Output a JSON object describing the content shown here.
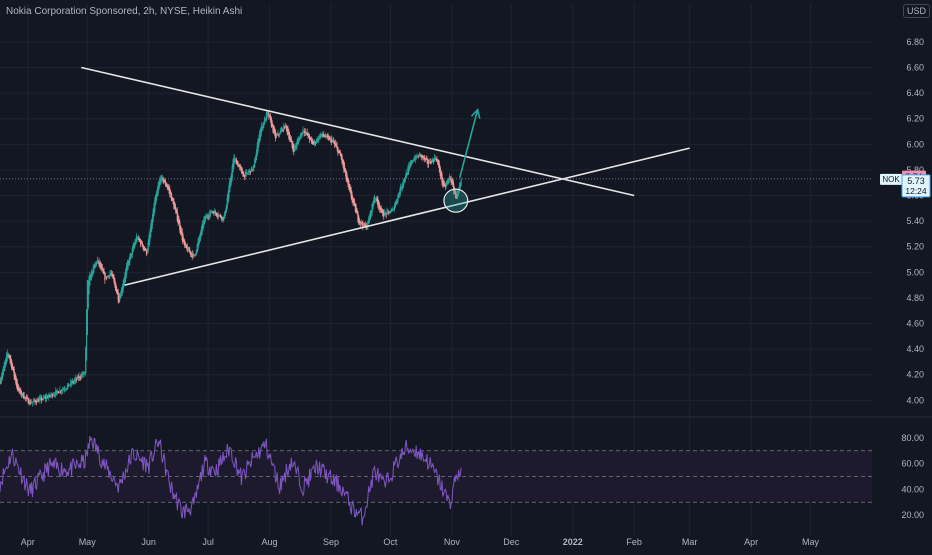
{
  "header": {
    "title": "Nokia Corporation Sponsored, 2h, NYSE, Heikin Ashi",
    "currency": "USD"
  },
  "colors": {
    "background": "#131722",
    "grid": "#1f2330",
    "up": "#26a69a",
    "down": "#ef9a9a",
    "trendline": "#e6e6e6",
    "arrow": "#26a69a",
    "rsi": "#7e57c2",
    "rsi_band": "#1e1a2e",
    "price_label": "#e1f5fe",
    "prev_label": "#f48fb1",
    "axis_text": "#b2b5be"
  },
  "chart_data": [
    {
      "type": "candlestick",
      "y_ticks": [
        "6.80",
        "6.60",
        "6.40",
        "6.20",
        "6.00",
        "5.80",
        "5.60",
        "5.40",
        "5.20",
        "5.00",
        "4.80",
        "4.60",
        "4.40",
        "4.20",
        "4.00"
      ],
      "ylim": [
        3.94,
        6.94
      ],
      "x_ticks": [
        "Apr",
        "May",
        "Jun",
        "Jul",
        "Aug",
        "Sep",
        "Oct",
        "Nov",
        "Dec",
        "2022",
        "Feb",
        "Mar",
        "Apr",
        "May"
      ],
      "x_tick_dates": [
        "2021-04-01",
        "2021-05-01",
        "2021-06-01",
        "2021-07-01",
        "2021-08-01",
        "2021-09-01",
        "2021-10-01",
        "2021-11-01",
        "2021-12-01",
        "2022-01-01",
        "2022-02-01",
        "2022-03-01",
        "2022-04-01",
        "2022-05-01"
      ],
      "xlim": [
        "2021-03-18",
        "2022-06-01"
      ],
      "series": [
        {
          "anchors": [
            [
              "2021-03-18",
              4.15
            ],
            [
              "2021-03-22",
              4.38
            ],
            [
              "2021-03-27",
              4.08
            ],
            [
              "2021-04-02",
              3.98
            ],
            [
              "2021-04-10",
              4.02
            ],
            [
              "2021-04-20",
              4.1
            ],
            [
              "2021-04-30",
              4.22
            ],
            [
              "2021-05-01",
              4.92
            ],
            [
              "2021-05-06",
              5.1
            ],
            [
              "2021-05-10",
              4.95
            ],
            [
              "2021-05-13",
              5.0
            ],
            [
              "2021-05-17",
              4.78
            ],
            [
              "2021-05-21",
              5.05
            ],
            [
              "2021-05-26",
              5.28
            ],
            [
              "2021-05-31",
              5.15
            ],
            [
              "2021-06-04",
              5.55
            ],
            [
              "2021-06-07",
              5.75
            ],
            [
              "2021-06-11",
              5.65
            ],
            [
              "2021-06-15",
              5.45
            ],
            [
              "2021-06-19",
              5.2
            ],
            [
              "2021-06-24",
              5.12
            ],
            [
              "2021-06-29",
              5.42
            ],
            [
              "2021-07-03",
              5.48
            ],
            [
              "2021-07-09",
              5.42
            ],
            [
              "2021-07-14",
              5.9
            ],
            [
              "2021-07-19",
              5.75
            ],
            [
              "2021-07-24",
              5.82
            ],
            [
              "2021-07-27",
              6.1
            ],
            [
              "2021-07-31",
              6.25
            ],
            [
              "2021-08-04",
              6.05
            ],
            [
              "2021-08-09",
              6.15
            ],
            [
              "2021-08-13",
              5.95
            ],
            [
              "2021-08-18",
              6.12
            ],
            [
              "2021-08-23",
              6.0
            ],
            [
              "2021-08-27",
              6.08
            ],
            [
              "2021-09-02",
              6.02
            ],
            [
              "2021-09-06",
              5.9
            ],
            [
              "2021-09-10",
              5.65
            ],
            [
              "2021-09-15",
              5.4
            ],
            [
              "2021-09-19",
              5.35
            ],
            [
              "2021-09-23",
              5.6
            ],
            [
              "2021-09-27",
              5.45
            ],
            [
              "2021-10-02",
              5.48
            ],
            [
              "2021-10-07",
              5.7
            ],
            [
              "2021-10-12",
              5.88
            ],
            [
              "2021-10-16",
              5.92
            ],
            [
              "2021-10-20",
              5.85
            ],
            [
              "2021-10-24",
              5.9
            ],
            [
              "2021-10-28",
              5.65
            ],
            [
              "2021-10-31",
              5.75
            ],
            [
              "2021-11-03",
              5.58
            ],
            [
              "2021-11-06",
              5.72
            ]
          ]
        }
      ],
      "last_price": "5.73",
      "prev_close": "5.74",
      "countdown": "12:24",
      "symbol": "NOK",
      "trendlines": [
        {
          "name": "upper-resistance",
          "from": [
            "2021-04-28",
            6.6
          ],
          "to": [
            "2022-02-01",
            5.6
          ]
        },
        {
          "name": "lower-support",
          "from": [
            "2021-05-20",
            4.9
          ],
          "to": [
            "2022-03-01",
            5.97
          ]
        }
      ],
      "arrow": {
        "from": [
          "2021-11-05",
          5.74
        ],
        "to": [
          "2021-11-14",
          6.27
        ]
      },
      "ellipse": {
        "center": [
          "2021-11-03",
          5.56
        ],
        "rx_days": 6,
        "ry": 0.09
      }
    },
    {
      "type": "line",
      "name": "RSI",
      "y_ticks": [
        "80.00",
        "60.00",
        "40.00",
        "20.00"
      ],
      "ylim": [
        10,
        90
      ],
      "levels": [
        70,
        50,
        30
      ],
      "anchors": [
        [
          "2021-03-18",
          45
        ],
        [
          "2021-03-24",
          68
        ],
        [
          "2021-04-02",
          38
        ],
        [
          "2021-04-12",
          58
        ],
        [
          "2021-04-22",
          55
        ],
        [
          "2021-04-30",
          62
        ],
        [
          "2021-05-03",
          80
        ],
        [
          "2021-05-10",
          58
        ],
        [
          "2021-05-17",
          42
        ],
        [
          "2021-05-24",
          68
        ],
        [
          "2021-06-01",
          58
        ],
        [
          "2021-06-06",
          78
        ],
        [
          "2021-06-12",
          42
        ],
        [
          "2021-06-18",
          22
        ],
        [
          "2021-06-24",
          28
        ],
        [
          "2021-06-29",
          60
        ],
        [
          "2021-07-05",
          55
        ],
        [
          "2021-07-12",
          72
        ],
        [
          "2021-07-18",
          48
        ],
        [
          "2021-07-23",
          62
        ],
        [
          "2021-07-30",
          75
        ],
        [
          "2021-08-06",
          42
        ],
        [
          "2021-08-12",
          62
        ],
        [
          "2021-08-18",
          42
        ],
        [
          "2021-08-25",
          58
        ],
        [
          "2021-09-01",
          48
        ],
        [
          "2021-09-06",
          42
        ],
        [
          "2021-09-12",
          25
        ],
        [
          "2021-09-17",
          18
        ],
        [
          "2021-09-23",
          55
        ],
        [
          "2021-09-28",
          42
        ],
        [
          "2021-10-04",
          60
        ],
        [
          "2021-10-09",
          72
        ],
        [
          "2021-10-14",
          70
        ],
        [
          "2021-10-20",
          62
        ],
        [
          "2021-10-26",
          45
        ],
        [
          "2021-10-31",
          28
        ],
        [
          "2021-11-03",
          50
        ],
        [
          "2021-11-06",
          55
        ]
      ]
    }
  ]
}
